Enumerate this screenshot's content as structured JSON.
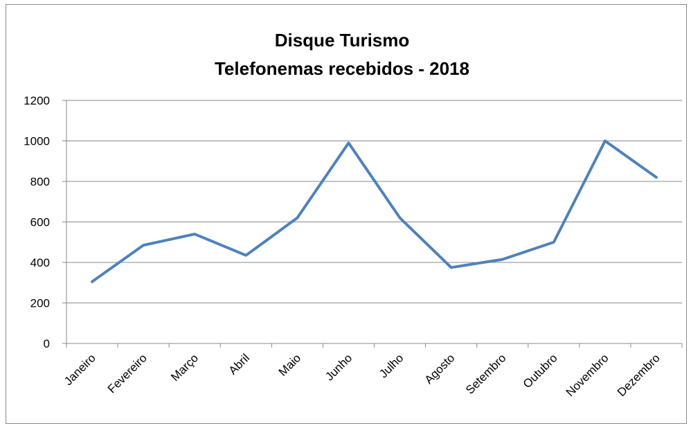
{
  "chart_data": {
    "type": "line",
    "title": "Disque Turismo",
    "subtitle": "Telefonemas recebidos - 2018",
    "categories": [
      "Janeiro",
      "Fevereiro",
      "Março",
      "Abril",
      "Maio",
      "Junho",
      "Julho",
      "Agosto",
      "Setembro",
      "Outubro",
      "Novembro",
      "Dezembro"
    ],
    "series": [
      {
        "color": "#4f81bd",
        "values": [
          305,
          485,
          540,
          435,
          620,
          990,
          620,
          375,
          415,
          500,
          1000,
          820
        ]
      }
    ],
    "ylim": [
      0,
      1200
    ],
    "yticks": [
      0,
      200,
      400,
      600,
      800,
      1000,
      1200
    ],
    "grid": true
  }
}
